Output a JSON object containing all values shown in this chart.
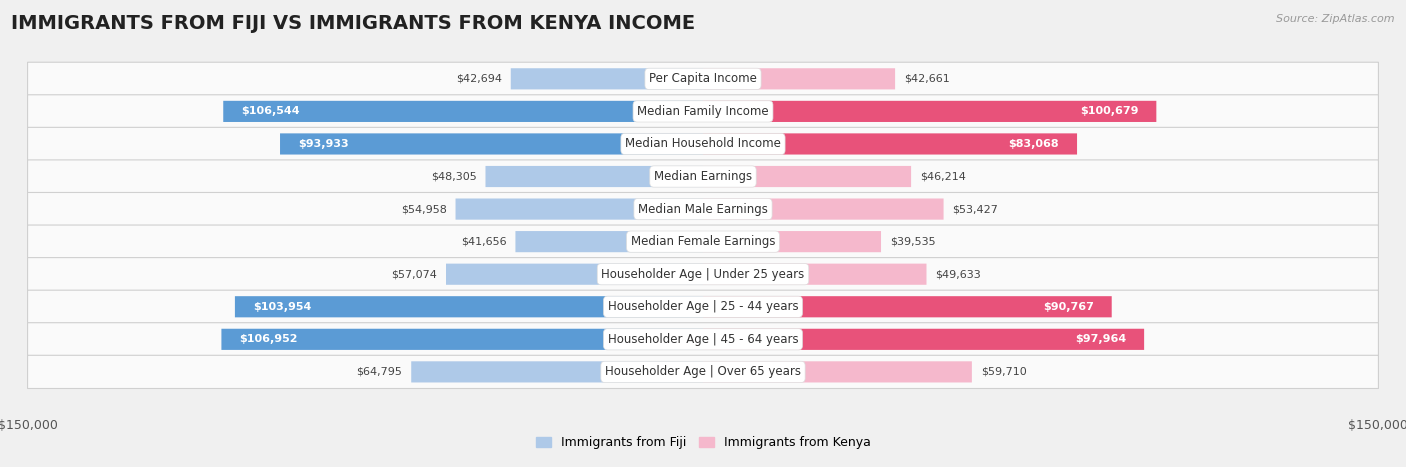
{
  "title": "IMMIGRANTS FROM FIJI VS IMMIGRANTS FROM KENYA INCOME",
  "source": "Source: ZipAtlas.com",
  "categories": [
    "Per Capita Income",
    "Median Family Income",
    "Median Household Income",
    "Median Earnings",
    "Median Male Earnings",
    "Median Female Earnings",
    "Householder Age | Under 25 years",
    "Householder Age | 25 - 44 years",
    "Householder Age | 45 - 64 years",
    "Householder Age | Over 65 years"
  ],
  "fiji_values": [
    42694,
    106544,
    93933,
    48305,
    54958,
    41656,
    57074,
    103954,
    106952,
    64795
  ],
  "kenya_values": [
    42661,
    100679,
    83068,
    46214,
    53427,
    39535,
    49633,
    90767,
    97964,
    59710
  ],
  "fiji_color_light": "#aec9e8",
  "fiji_color_dark": "#5b9bd5",
  "kenya_color_light": "#f5b8cc",
  "kenya_color_dark": "#e8527a",
  "fiji_label": "Immigrants from Fiji",
  "kenya_label": "Immigrants from Kenya",
  "max_value": 150000,
  "large_threshold": 80000,
  "background_color": "#f0f0f0",
  "row_bg_color": "#fafafa",
  "title_fontsize": 14,
  "label_fontsize": 8.5,
  "value_fontsize": 8,
  "axis_label": "$150,000"
}
